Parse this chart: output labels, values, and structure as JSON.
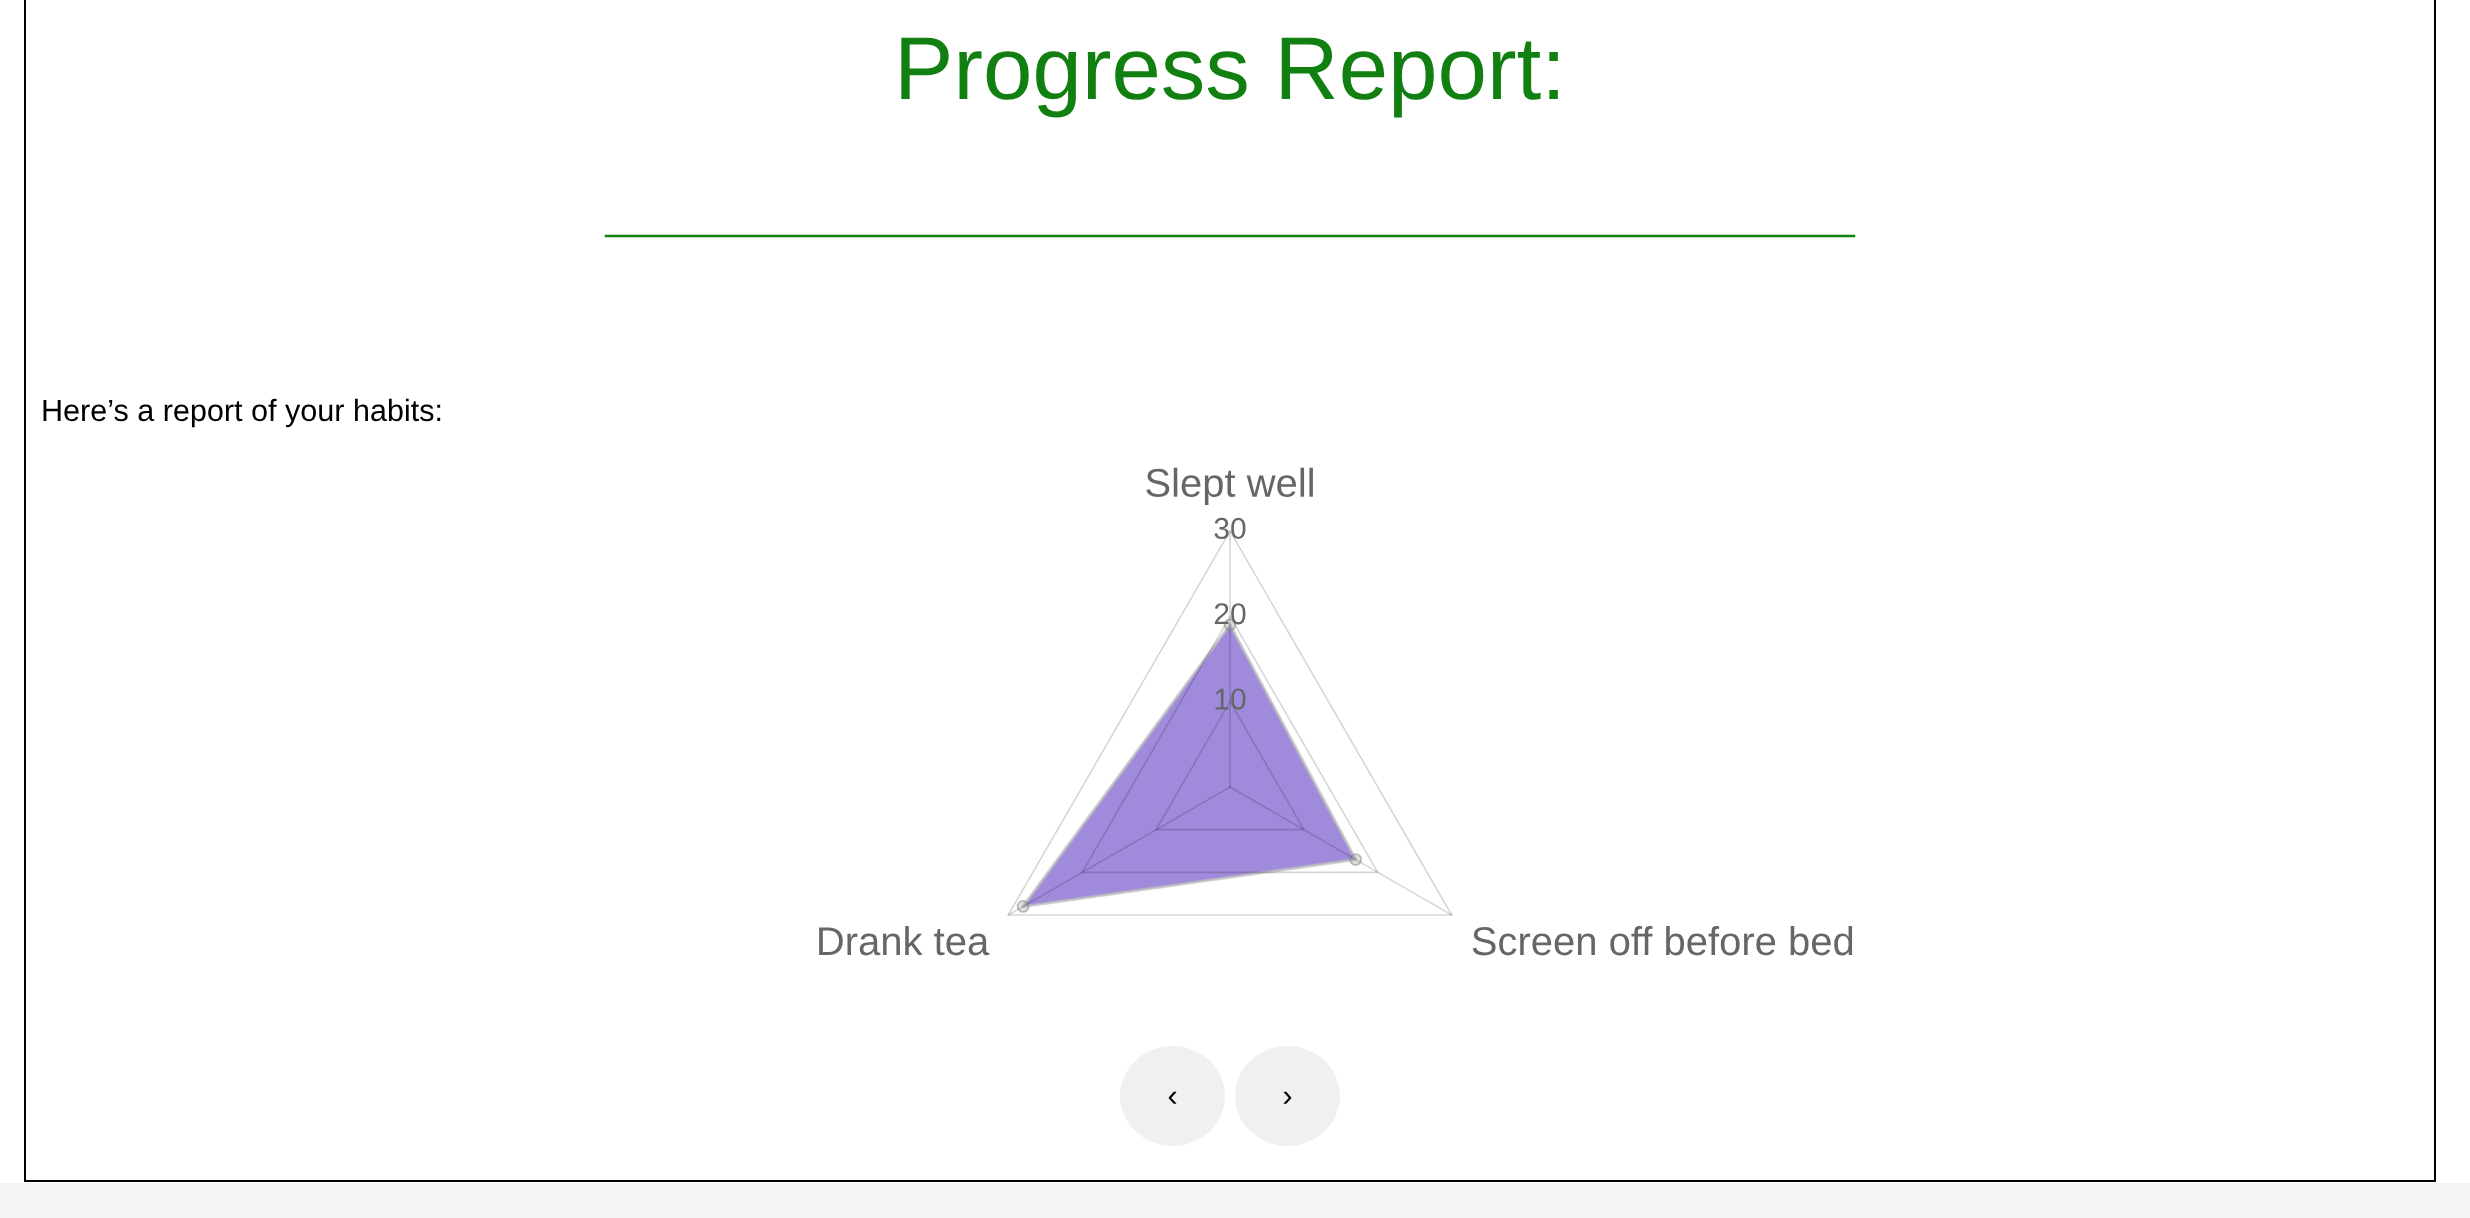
{
  "chart_data": {
    "type": "radar",
    "title": "Progress Report:",
    "subtitle": "Here’s a report of your habits:",
    "categories": [
      "Slept well",
      "Screen off before bed",
      "Drank tea"
    ],
    "series": [
      {
        "color": "#a08adc",
        "values": [
          19,
          17,
          28
        ]
      }
    ],
    "ylim": [
      0,
      30
    ],
    "yticks": [
      10,
      20,
      30
    ],
    "grid": true,
    "marker": "circle",
    "annotations": [
      "‹",
      "›"
    ]
  }
}
